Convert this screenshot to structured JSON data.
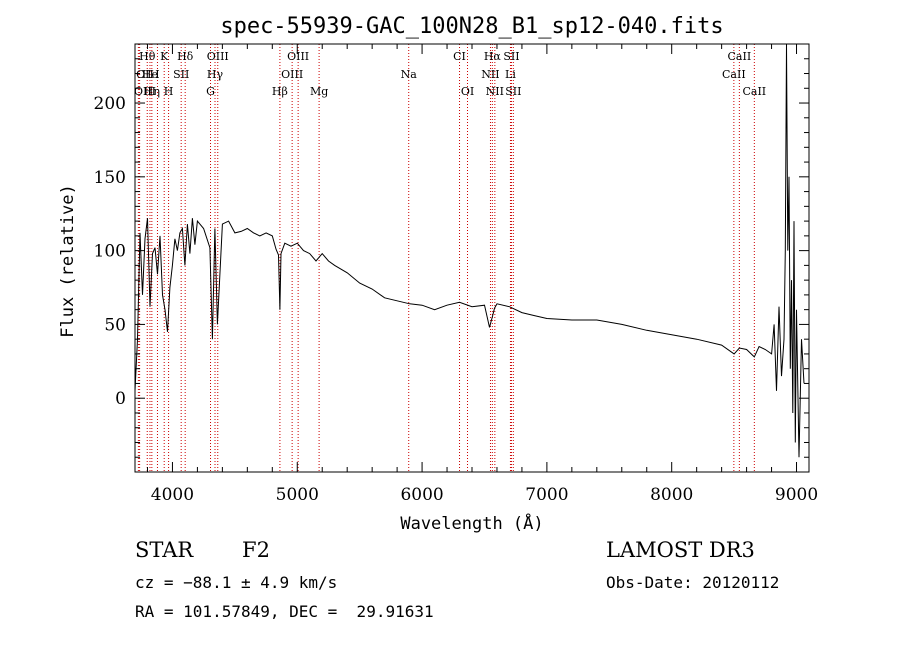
{
  "chart_data": {
    "type": "line",
    "title": "spec-55939-GAC_100N28_B1_sp12-040.fits",
    "xlabel": "Wavelength (Å)",
    "ylabel": "Flux (relative)",
    "xlim": [
      3700,
      9100
    ],
    "ylim": [
      -50,
      240
    ],
    "xticks": [
      4000,
      5000,
      6000,
      7000,
      8000,
      9000
    ],
    "yticks": [
      0,
      50,
      100,
      150,
      200
    ],
    "grid": false,
    "series": [
      {
        "name": "spectrum",
        "x": [
          3700,
          3720,
          3740,
          3760,
          3780,
          3800,
          3820,
          3840,
          3860,
          3880,
          3900,
          3920,
          3940,
          3960,
          3980,
          4000,
          4020,
          4040,
          4060,
          4080,
          4100,
          4120,
          4140,
          4160,
          4180,
          4200,
          4250,
          4300,
          4320,
          4340,
          4360,
          4400,
          4450,
          4500,
          4550,
          4600,
          4650,
          4700,
          4750,
          4800,
          4830,
          4850,
          4861,
          4870,
          4900,
          4950,
          5000,
          5050,
          5100,
          5150,
          5200,
          5250,
          5300,
          5400,
          5500,
          5600,
          5700,
          5800,
          5900,
          6000,
          6100,
          6200,
          6300,
          6400,
          6500,
          6540,
          6563,
          6580,
          6600,
          6700,
          6800,
          6900,
          7000,
          7200,
          7400,
          7600,
          7800,
          8000,
          8200,
          8400,
          8500,
          8542,
          8600,
          8662,
          8700,
          8750,
          8800,
          8820,
          8840,
          8860,
          8880,
          8900,
          8910,
          8920,
          8930,
          8940,
          8950,
          8960,
          8970,
          8980,
          8990,
          9000,
          9020,
          9040,
          9060
        ],
        "y": [
          5,
          40,
          112,
          70,
          108,
          122,
          62,
          98,
          102,
          84,
          110,
          70,
          60,
          45,
          75,
          90,
          108,
          100,
          112,
          115,
          90,
          118,
          98,
          122,
          104,
          120,
          115,
          102,
          40,
          115,
          50,
          118,
          120,
          112,
          113,
          115,
          112,
          110,
          112,
          110,
          101,
          97,
          60,
          98,
          105,
          103,
          105,
          100,
          98,
          93,
          98,
          93,
          90,
          85,
          78,
          74,
          68,
          66,
          64,
          63,
          60,
          63,
          65,
          62,
          63,
          48,
          55,
          61,
          64,
          62,
          58,
          56,
          54,
          53,
          53,
          50,
          46,
          43,
          40,
          36,
          30,
          34,
          33,
          28,
          35,
          33,
          30,
          50,
          5,
          62,
          15,
          40,
          100,
          240,
          100,
          150,
          20,
          80,
          -10,
          120,
          -30,
          60,
          -40,
          40,
          10
        ]
      }
    ],
    "lines": [
      {
        "name": "OII",
        "x": 3727,
        "row": 1
      },
      {
        "name": "OIII",
        "x": 3737,
        "row": 2
      },
      {
        "name": "Hθ",
        "x": 3798,
        "row": 0
      },
      {
        "name": "He",
        "x": 3820,
        "row": 1
      },
      {
        "name": "Hη",
        "x": 3835,
        "row": 2
      },
      {
        "name": "K",
        "x": 3934,
        "row": 0
      },
      {
        "name": "H",
        "x": 3969,
        "row": 2
      },
      {
        "name": "I",
        "x": 3880,
        "row": 1
      },
      {
        "name": "SII",
        "x": 4070,
        "row": 1
      },
      {
        "name": "Hδ",
        "x": 4102,
        "row": 0
      },
      {
        "name": "G",
        "x": 4305,
        "row": 2
      },
      {
        "name": "OIII",
        "x": 4363,
        "row": 0
      },
      {
        "name": "Hγ",
        "x": 4341,
        "row": 1
      },
      {
        "name": "Hβ",
        "x": 4861,
        "row": 2
      },
      {
        "name": "OIII",
        "x": 4959,
        "row": 1
      },
      {
        "name": "OIII",
        "x": 5007,
        "row": 0
      },
      {
        "name": "Mg",
        "x": 5175,
        "row": 2
      },
      {
        "name": "Na",
        "x": 5893,
        "row": 1
      },
      {
        "name": "CI",
        "x": 6300,
        "row": 0
      },
      {
        "name": "OI",
        "x": 6364,
        "row": 2
      },
      {
        "name": "NII",
        "x": 6548,
        "row": 1
      },
      {
        "name": "Hα",
        "x": 6563,
        "row": 0
      },
      {
        "name": "NII",
        "x": 6583,
        "row": 2
      },
      {
        "name": "SII",
        "x": 6716,
        "row": 0
      },
      {
        "name": "Li",
        "x": 6708,
        "row": 1
      },
      {
        "name": "SII",
        "x": 6731,
        "row": 2
      },
      {
        "name": "CaII",
        "x": 8498,
        "row": 1
      },
      {
        "name": "CaII",
        "x": 8542,
        "row": 0
      },
      {
        "name": "CaII",
        "x": 8662,
        "row": 2
      }
    ]
  },
  "info": {
    "object_class": "STAR",
    "subclass": "F2",
    "survey": "LAMOST DR3",
    "velocity": "cz = −88.1 ± 4.9 km/s",
    "obs_date": "Obs-Date: 20120112",
    "coords": "RA = 101.57849, DEC =  29.91631"
  },
  "colors": {
    "spectrum": "#000000",
    "line_markers": "#cc0000",
    "axes": "#000000"
  }
}
